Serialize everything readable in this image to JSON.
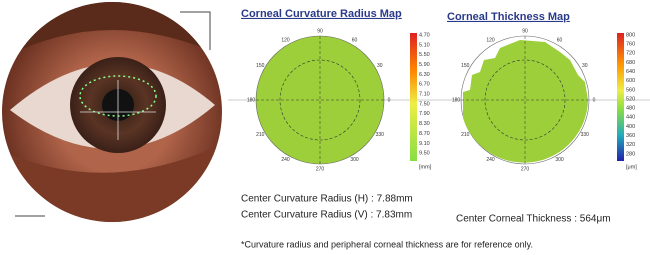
{
  "maps": [
    {
      "title": "Corneal Curvature Radius Map",
      "scale": [
        "4.70",
        "5.10",
        "5.50",
        "5.90",
        "6.30",
        "6.70",
        "7.10",
        "7.50",
        "7.90",
        "8.30",
        "8.70",
        "9.10",
        "9.50"
      ],
      "unit": "[mm]"
    },
    {
      "title": "Corneal Thickness Map",
      "scale": [
        "800",
        "760",
        "720",
        "680",
        "640",
        "600",
        "560",
        "520",
        "480",
        "440",
        "400",
        "360",
        "320",
        "280"
      ],
      "unit": "[μm]"
    }
  ],
  "angles": [
    "0",
    "30",
    "60",
    "90",
    "120",
    "150",
    "180",
    "210",
    "240",
    "270",
    "300",
    "330"
  ],
  "results": {
    "radius_h": "Center Curvature Radius (H) : 7.88mm",
    "radius_v": "Center Curvature Radius (V) : 7.83mm",
    "thickness": "Center Corneal Thickness : 564μm"
  },
  "footnote": "*Curvature radius and peripheral corneal thickness are for reference only."
}
